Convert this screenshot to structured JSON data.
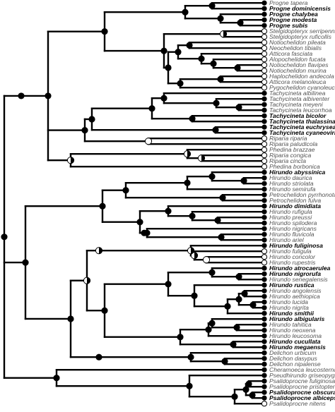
{
  "tips": [
    {
      "name": "Progne tapera",
      "bold": false,
      "state": "black"
    },
    {
      "name": "Progne dominicensis",
      "bold": true,
      "state": "black"
    },
    {
      "name": "Progne chalybea",
      "bold": true,
      "state": "black"
    },
    {
      "name": "Progne modesta",
      "bold": true,
      "state": "black"
    },
    {
      "name": "Progne subis",
      "bold": true,
      "state": "black"
    },
    {
      "name": "Stelgidopteryx serripennis",
      "bold": false,
      "state": "white"
    },
    {
      "name": "Stelgidopteryx ruficollis",
      "bold": false,
      "state": "white"
    },
    {
      "name": "Notiochelidon pileata",
      "bold": false,
      "state": "white"
    },
    {
      "name": "Neochelidon tibialis",
      "bold": false,
      "state": "white"
    },
    {
      "name": "Atticora fasciata",
      "bold": false,
      "state": "white"
    },
    {
      "name": "Alopochelidon fucata",
      "bold": false,
      "state": "white"
    },
    {
      "name": "Notiochelidon flavipes",
      "bold": false,
      "state": "white"
    },
    {
      "name": "Notiochelidon murina",
      "bold": false,
      "state": "white"
    },
    {
      "name": "Haplochelidon andecola",
      "bold": false,
      "state": "white"
    },
    {
      "name": "Atticora melanoleuca",
      "bold": false,
      "state": "white"
    },
    {
      "name": "Pygochelidon cyanoleuca",
      "bold": false,
      "state": "white"
    },
    {
      "name": "Tachycineta albilinea",
      "bold": false,
      "state": "black"
    },
    {
      "name": "Tachycineta albiventer",
      "bold": false,
      "state": "black"
    },
    {
      "name": "Tachycineta meyeni",
      "bold": false,
      "state": "black"
    },
    {
      "name": "Tachycineta leucorrhoa",
      "bold": false,
      "state": "black"
    },
    {
      "name": "Tachycineta bicolor",
      "bold": true,
      "state": "black"
    },
    {
      "name": "Tachycineta thalassina",
      "bold": true,
      "state": "black"
    },
    {
      "name": "Tachycineta euchrysea",
      "bold": true,
      "state": "black"
    },
    {
      "name": "Tachycineta cyaneoviridis",
      "bold": true,
      "state": "black"
    },
    {
      "name": "Riparia riparia",
      "bold": false,
      "state": "white"
    },
    {
      "name": "Riparia paludicola",
      "bold": false,
      "state": "white"
    },
    {
      "name": "Phedina brazzae",
      "bold": false,
      "state": "white"
    },
    {
      "name": "Riparia congica",
      "bold": false,
      "state": "white"
    },
    {
      "name": "Riparia cincta",
      "bold": false,
      "state": "white"
    },
    {
      "name": "Phedina borbonica",
      "bold": false,
      "state": "white"
    },
    {
      "name": "Hirundo abyssinica",
      "bold": true,
      "state": "black"
    },
    {
      "name": "Hirundo daurica",
      "bold": false,
      "state": "black"
    },
    {
      "name": "Hirundo striolata",
      "bold": false,
      "state": "black"
    },
    {
      "name": "Hirundo semirufa",
      "bold": false,
      "state": "black"
    },
    {
      "name": "Petrochelidon pyrrhonota",
      "bold": false,
      "state": "black"
    },
    {
      "name": "Petrochelidon fulva",
      "bold": false,
      "state": "black"
    },
    {
      "name": "Hirundo dimidiata",
      "bold": true,
      "state": "black"
    },
    {
      "name": "Hirundo rufigula",
      "bold": false,
      "state": "black"
    },
    {
      "name": "Hirundo preussi",
      "bold": false,
      "state": "black"
    },
    {
      "name": "Hirundo spilodera",
      "bold": false,
      "state": "black"
    },
    {
      "name": "Hirundo nigricans",
      "bold": false,
      "state": "black"
    },
    {
      "name": "Hirundo fluvicola",
      "bold": false,
      "state": "black"
    },
    {
      "name": "Hirundo ariel",
      "bold": false,
      "state": "black"
    },
    {
      "name": "Hirundo fuliginosa",
      "bold": true,
      "state": "black"
    },
    {
      "name": "Hirundo fuligula",
      "bold": false,
      "state": "white"
    },
    {
      "name": "Hirundo concolor",
      "bold": false,
      "state": "white"
    },
    {
      "name": "Hirundo rupestris",
      "bold": false,
      "state": "white"
    },
    {
      "name": "Hirundo atrocaerulea",
      "bold": true,
      "state": "black"
    },
    {
      "name": "Hirundo nigrorufa",
      "bold": true,
      "state": "black"
    },
    {
      "name": "Hirundo senegalensis",
      "bold": false,
      "state": "black"
    },
    {
      "name": "Hirundo rustica",
      "bold": true,
      "state": "black"
    },
    {
      "name": "Hirundo angolensis",
      "bold": false,
      "state": "black"
    },
    {
      "name": "Hirundo aethiopica",
      "bold": false,
      "state": "black"
    },
    {
      "name": "Hirundo lucida",
      "bold": false,
      "state": "black"
    },
    {
      "name": "Hirundo nigrita",
      "bold": false,
      "state": "black"
    },
    {
      "name": "Hirundo smithii",
      "bold": true,
      "state": "black"
    },
    {
      "name": "Hirundo albigularis",
      "bold": true,
      "state": "black"
    },
    {
      "name": "Hirundo tahitica",
      "bold": false,
      "state": "black"
    },
    {
      "name": "Hirundo neoxena",
      "bold": false,
      "state": "black"
    },
    {
      "name": "Hirundo leucosoma",
      "bold": false,
      "state": "black"
    },
    {
      "name": "Hirundo cucullata",
      "bold": true,
      "state": "black"
    },
    {
      "name": "Hirundo megaensis",
      "bold": true,
      "state": "black"
    },
    {
      "name": "Delichon urbicum",
      "bold": false,
      "state": "black"
    },
    {
      "name": "Delichon dasypus",
      "bold": false,
      "state": "black"
    },
    {
      "name": "Delichon nipalense",
      "bold": false,
      "state": "black"
    },
    {
      "name": "Cheramoeca leucosterna",
      "bold": false,
      "state": "black"
    },
    {
      "name": "Pseudhirundo griseopyga",
      "bold": false,
      "state": "black"
    },
    {
      "name": "Psalidoprocne fuliginosa",
      "bold": false,
      "state": "black"
    },
    {
      "name": "Psalidoprocne pristoptera",
      "bold": false,
      "state": "black"
    },
    {
      "name": "Psalidoprocne obscura",
      "bold": true,
      "state": "black"
    },
    {
      "name": "Psalidoprocne albiceps",
      "bold": true,
      "state": "black"
    },
    {
      "name": "Psalidoprocne nitens",
      "bold": false,
      "state": "white"
    }
  ],
  "colors": {
    "state_black": "#000000",
    "state_white": "#ffffff",
    "label_plain": "#555555",
    "label_bold": "#000000"
  }
}
